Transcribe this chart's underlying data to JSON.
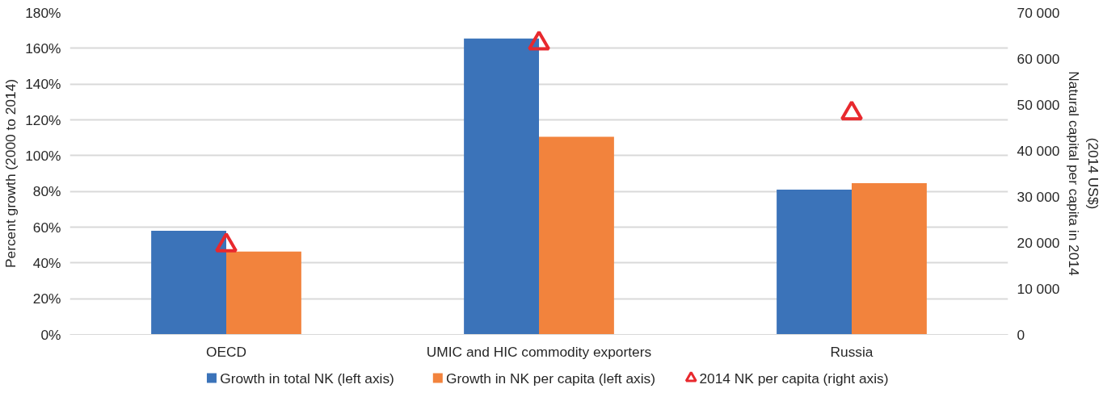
{
  "chart_data": {
    "type": "bar",
    "categories": [
      "OECD",
      "UMIC and HIC commodity exporters",
      "Russia"
    ],
    "ylabel": "Percent growth (2000 to 2014)",
    "y2label": "Natural capital per capita in 2014\n(2014 US$)",
    "ylim": [
      0,
      180
    ],
    "yticks": [
      {
        "value": 0,
        "label": "0%"
      },
      {
        "value": 20,
        "label": "20%"
      },
      {
        "value": 40,
        "label": "40%"
      },
      {
        "value": 60,
        "label": "60%"
      },
      {
        "value": 80,
        "label": "80%"
      },
      {
        "value": 100,
        "label": "100%"
      },
      {
        "value": 120,
        "label": "120%"
      },
      {
        "value": 140,
        "label": "140%"
      },
      {
        "value": 160,
        "label": "160%"
      },
      {
        "value": 180,
        "label": "180%"
      }
    ],
    "y2lim": [
      0,
      70000
    ],
    "y2ticks": [
      0,
      {
        "value": 10000,
        "label": "10 000"
      },
      {
        "value": 20000,
        "label": "20 000"
      },
      {
        "value": 30000,
        "label": "30 000"
      },
      {
        "value": 40000,
        "label": "40 000"
      },
      {
        "value": 50000,
        "label": "50 000"
      },
      {
        "value": 60000,
        "label": "60 000"
      },
      {
        "value": 70000,
        "label": "70 000"
      }
    ],
    "series": [
      {
        "name": "Growth in total NK (left axis)",
        "color": "#3b73b9",
        "values": [
          58,
          165.5,
          81
        ]
      },
      {
        "name": "Growth in NK per capita (left axis)",
        "color": "#f2833d",
        "values": [
          46.3,
          110.5,
          84.6
        ]
      },
      {
        "name": "2014 NK per capita (right axis)",
        "color": "#e8292e",
        "type": "scatter",
        "marker": "triangle",
        "axis": "y2",
        "values": [
          19400,
          63300,
          48100
        ]
      }
    ],
    "grid": "y",
    "legend": "bottom"
  }
}
